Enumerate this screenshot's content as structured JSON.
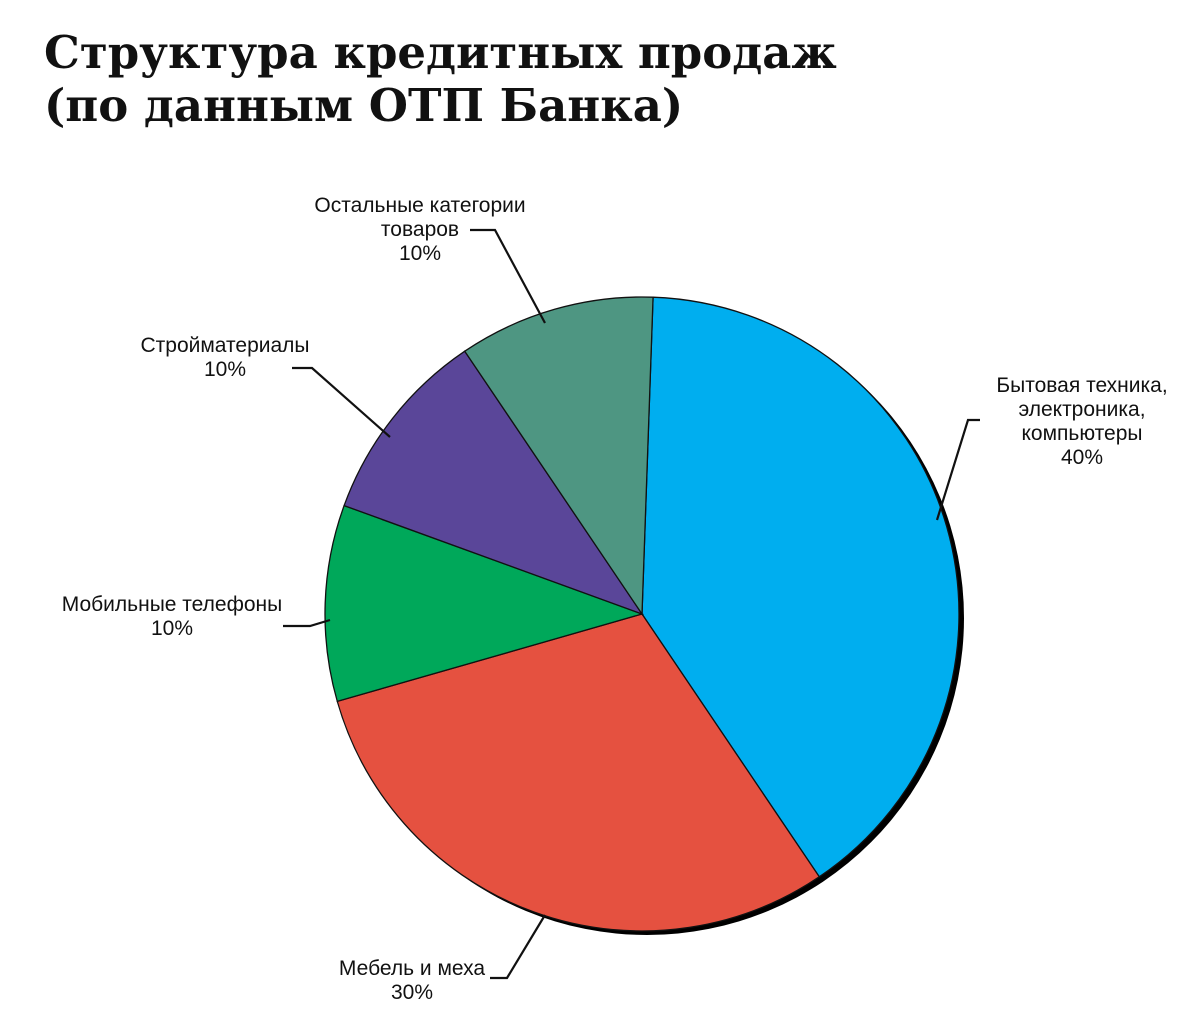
{
  "chart_data": {
    "type": "pie",
    "title": [
      "Структура кредитных продаж",
      "(по данным ОТП Банка)"
    ],
    "slices": [
      {
        "label": [
          "Бытовая техника,",
          "электроника,",
          "компьютеры"
        ],
        "value": 40,
        "value_label": "40%",
        "color": "#00AEEF"
      },
      {
        "label": [
          "Мебель и меха"
        ],
        "value": 30,
        "value_label": "30%",
        "color": "#E55140"
      },
      {
        "label": [
          "Мобильные телефоны"
        ],
        "value": 10,
        "value_label": "10%",
        "color": "#00A85A"
      },
      {
        "label": [
          "Стройматериалы"
        ],
        "value": 10,
        "value_label": "10%",
        "color": "#5A4699"
      },
      {
        "label": [
          "Остальные категории",
          "товаров"
        ],
        "value": 10,
        "value_label": "10%",
        "color": "#4E9682"
      }
    ]
  }
}
